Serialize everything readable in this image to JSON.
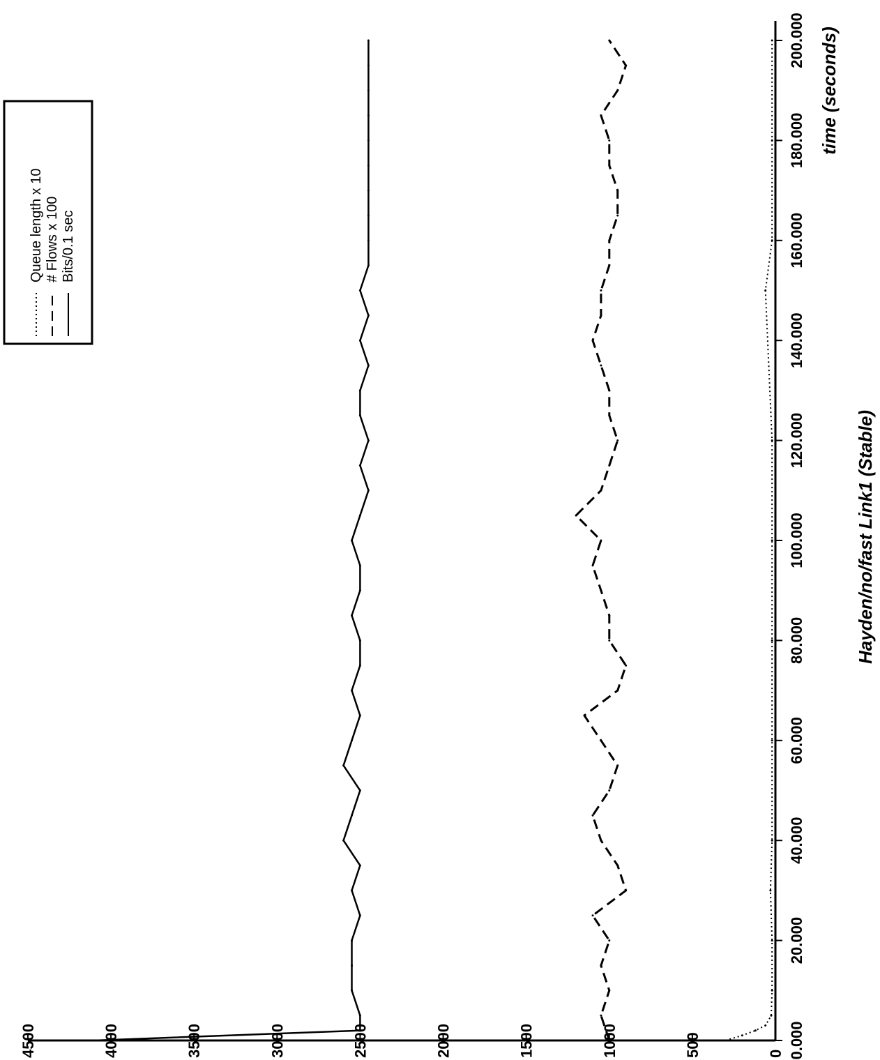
{
  "chart_data": {
    "type": "line",
    "title": "Hayden/no/fast Link1 (Stable)",
    "xlabel": "time (seconds)",
    "ylabel": "",
    "xlim": [
      0,
      200
    ],
    "ylim": [
      0,
      4500
    ],
    "x_ticks": [
      0,
      20,
      40,
      60,
      80,
      100,
      120,
      140,
      160,
      180,
      200
    ],
    "x_tick_labels": [
      "0.000",
      "20.000",
      "40.000",
      "60.000",
      "80.000",
      "100.000",
      "120.000",
      "140.000",
      "160.000",
      "180.000",
      "200.000"
    ],
    "y_ticks": [
      0,
      500,
      1000,
      1500,
      2000,
      2500,
      3000,
      3500,
      4000,
      4500
    ],
    "y_tick_labels": [
      "0",
      "500",
      "1000",
      "1500",
      "2000",
      "2500",
      "3000",
      "3500",
      "4000",
      "4500"
    ],
    "orientation": "rotated 90 degrees counter-clockwise",
    "legend_position": "top-left",
    "series": [
      {
        "name": "Queue length x 10",
        "style": "dotted",
        "x": [
          0,
          1,
          2,
          3,
          5,
          10,
          20,
          30,
          40,
          60,
          80,
          100,
          120,
          150,
          160,
          180,
          200
        ],
        "y": [
          300,
          200,
          120,
          60,
          25,
          20,
          20,
          30,
          20,
          20,
          20,
          20,
          20,
          60,
          20,
          20,
          20
        ]
      },
      {
        "name": "# Flows x 100",
        "style": "dashed",
        "x": [
          0,
          5,
          10,
          15,
          20,
          25,
          30,
          35,
          40,
          45,
          50,
          55,
          60,
          65,
          70,
          75,
          80,
          85,
          90,
          95,
          100,
          105,
          110,
          115,
          120,
          125,
          130,
          135,
          140,
          145,
          150,
          155,
          160,
          165,
          170,
          175,
          180,
          185,
          190,
          195,
          200
        ],
        "y": [
          1000,
          1050,
          1000,
          1050,
          1000,
          1100,
          900,
          950,
          1050,
          1100,
          1000,
          950,
          1050,
          1150,
          950,
          900,
          1000,
          1000,
          1050,
          1100,
          1050,
          1200,
          1050,
          1000,
          950,
          1000,
          1000,
          1050,
          1100,
          1050,
          1050,
          1000,
          1000,
          950,
          950,
          1000,
          1000,
          1050,
          950,
          900,
          1000
        ]
      },
      {
        "name": "Bits/0.1 sec",
        "style": "solid",
        "x": [
          0,
          2,
          5,
          10,
          15,
          20,
          25,
          30,
          35,
          40,
          45,
          50,
          55,
          60,
          65,
          70,
          75,
          80,
          85,
          90,
          95,
          100,
          105,
          110,
          115,
          120,
          125,
          130,
          135,
          140,
          145,
          150,
          155,
          160,
          165,
          170,
          175,
          180,
          185,
          190,
          195,
          200
        ],
        "y": [
          4100,
          2500,
          2500,
          2550,
          2550,
          2550,
          2500,
          2550,
          2500,
          2600,
          2550,
          2500,
          2600,
          2550,
          2500,
          2550,
          2500,
          2500,
          2550,
          2500,
          2500,
          2550,
          2500,
          2450,
          2500,
          2450,
          2500,
          2500,
          2450,
          2500,
          2450,
          2500,
          2450,
          2450,
          2450,
          2450,
          2450,
          2450,
          2450,
          2450,
          2450,
          2450
        ]
      }
    ]
  }
}
